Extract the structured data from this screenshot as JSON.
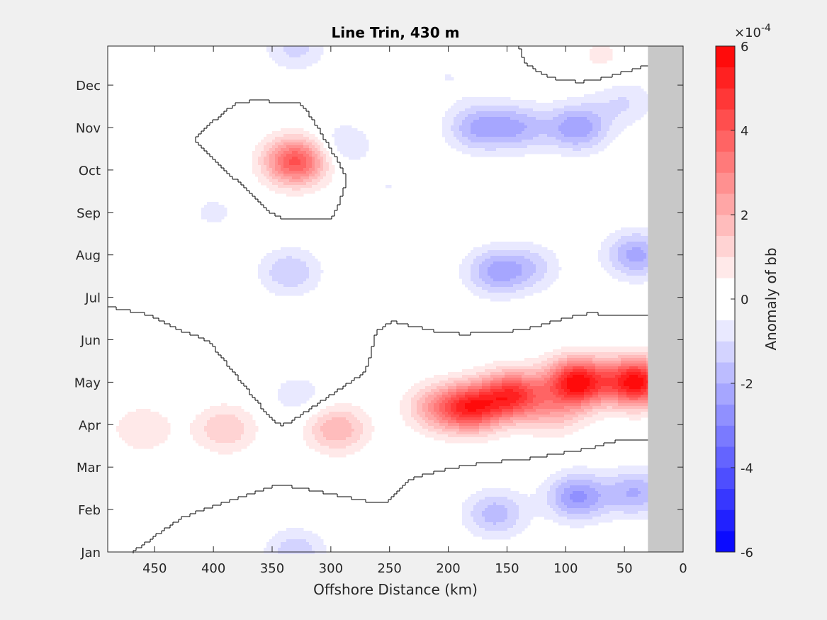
{
  "chart_data": {
    "type": "heatmap",
    "title": "Line Trin, 430 m",
    "xlabel": "Offshore Distance (km)",
    "ylabel": "",
    "x_ticks": [
      450,
      400,
      350,
      300,
      250,
      200,
      150,
      100,
      50,
      0
    ],
    "xlim": [
      490,
      0
    ],
    "x_reversed": true,
    "y_ticks": [
      "Jan",
      "Feb",
      "Mar",
      "Apr",
      "May",
      "Jun",
      "Jul",
      "Aug",
      "Sep",
      "Oct",
      "Nov",
      "Dec"
    ],
    "ylim_months": [
      1,
      12.92
    ],
    "no_data_region_km": [
      0,
      30
    ],
    "zero_contour": "black line",
    "colorbar": {
      "label": "Anomaly of bb",
      "exponent_label": "×10",
      "exponent_value": "-4",
      "range": [
        -6,
        6
      ],
      "tick_values": [
        -6,
        -4,
        -2,
        0,
        2,
        4,
        6
      ],
      "tick_labels": [
        "-6",
        "-4",
        "-2",
        "0",
        "2",
        "4",
        "6"
      ],
      "levels": 24,
      "negative_color": "#0000ff",
      "positive_color": "#ff0000",
      "zero_color": "#ffffff"
    },
    "features": [
      {
        "x_km": 330,
        "month": 10.2,
        "value": 4.2
      },
      {
        "x_km": 330,
        "month": 12.9,
        "value": -1.2
      },
      {
        "x_km": 335,
        "month": 7.6,
        "value": -1.5
      },
      {
        "x_km": 328,
        "month": 4.7,
        "value": -0.8
      },
      {
        "x_km": 330,
        "month": 1.0,
        "value": -1.4
      },
      {
        "x_km": 460,
        "month": 3.9,
        "value": 1.0
      },
      {
        "x_km": 390,
        "month": 3.9,
        "value": 1.5
      },
      {
        "x_km": 295,
        "month": 3.9,
        "value": 2.0
      },
      {
        "x_km": 210,
        "month": 4.4,
        "value": 2.0
      },
      {
        "x_km": 180,
        "month": 4.4,
        "value": 4.6
      },
      {
        "x_km": 145,
        "month": 4.7,
        "value": 4.6
      },
      {
        "x_km": 90,
        "month": 5.0,
        "value": 5.8
      },
      {
        "x_km": 40,
        "month": 5.0,
        "value": 5.8
      },
      {
        "x_km": 110,
        "month": 4.3,
        "value": 1.5
      },
      {
        "x_km": 160,
        "month": 7.6,
        "value": -2.0
      },
      {
        "x_km": 130,
        "month": 7.7,
        "value": -1.2
      },
      {
        "x_km": 40,
        "month": 8.0,
        "value": -2.2
      },
      {
        "x_km": 90,
        "month": 2.3,
        "value": -2.6
      },
      {
        "x_km": 40,
        "month": 2.4,
        "value": -2.0
      },
      {
        "x_km": 160,
        "month": 1.9,
        "value": -1.8
      },
      {
        "x_km": 175,
        "month": 11.0,
        "value": -2.0
      },
      {
        "x_km": 140,
        "month": 11.0,
        "value": -1.8
      },
      {
        "x_km": 90,
        "month": 11.0,
        "value": -2.4
      },
      {
        "x_km": 50,
        "month": 11.6,
        "value": -1.0
      },
      {
        "x_km": 70,
        "month": 12.7,
        "value": 0.6
      },
      {
        "x_km": 290,
        "month": 10.6,
        "value": -1.0
      },
      {
        "x_km": 400,
        "month": 9.0,
        "value": -0.6
      },
      {
        "x_km": 250,
        "month": 9.6,
        "value": -0.5
      },
      {
        "x_km": 200,
        "month": 12.2,
        "value": -0.5
      },
      {
        "x_km": 440,
        "month": 12.4,
        "value": -0.3
      }
    ]
  }
}
